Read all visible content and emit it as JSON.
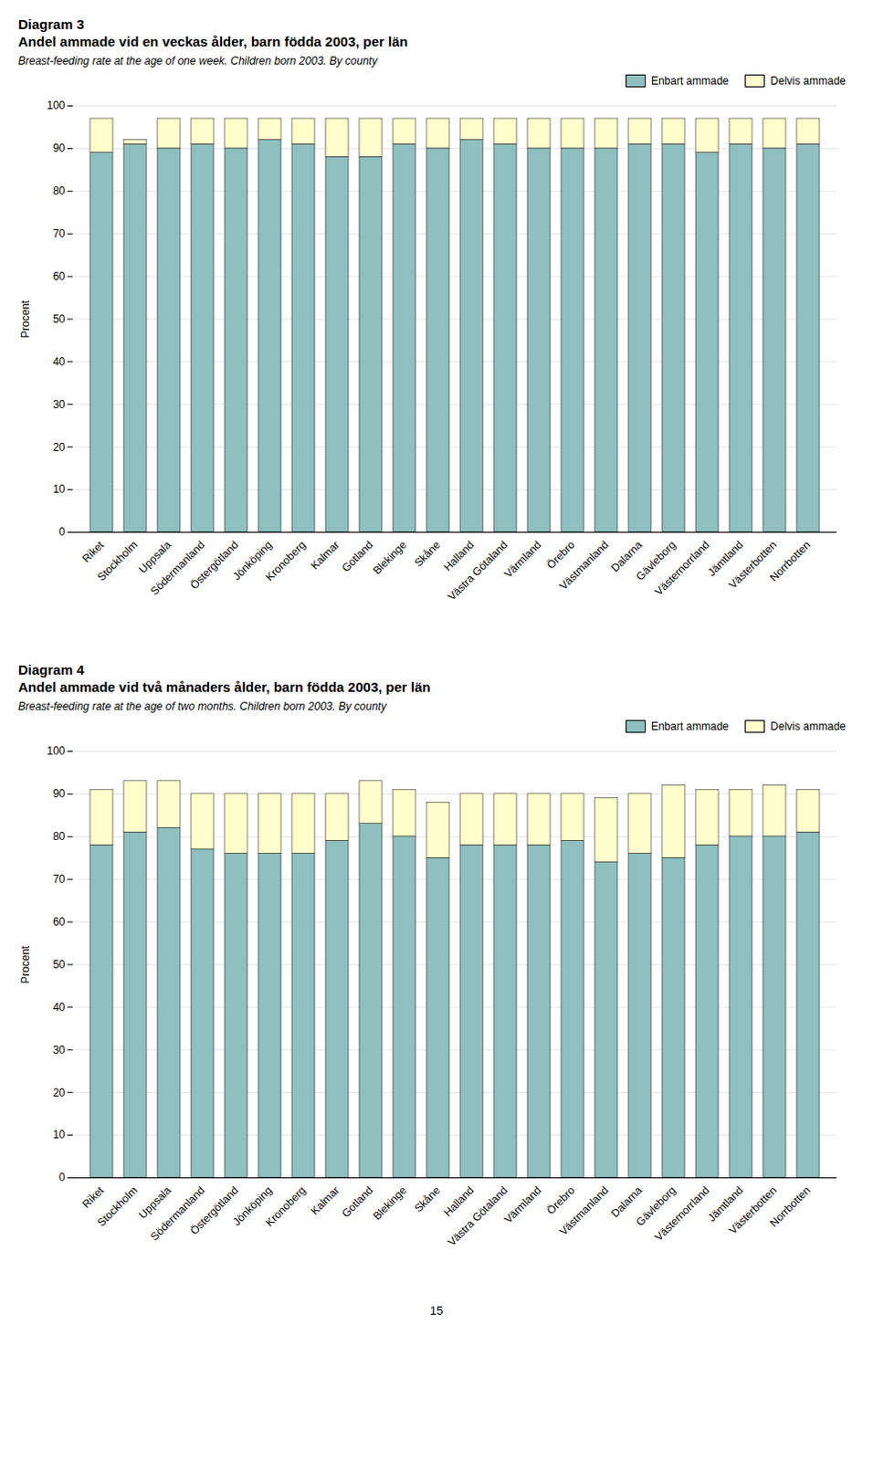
{
  "chart_data": [
    {
      "type": "bar",
      "title": [
        "Diagram 3",
        "Andel ammade vid en veckas ålder, barn födda 2003, per län"
      ],
      "subtitle": "Breast-feeding rate at the age of one week. Children born 2003. By county",
      "categories": [
        "Riket",
        "Stockholm",
        "Uppsala",
        "Södermanland",
        "Östergötland",
        "Jönköping",
        "Kronoberg",
        "Kalmar",
        "Gotland",
        "Blekinge",
        "Skåne",
        "Halland",
        "Västra Götaland",
        "Värmland",
        "Örebro",
        "Västmanland",
        "Dalarna",
        "Gävleborg",
        "Västernorrland",
        "Jämtland",
        "Västerbotten",
        "Norrbotten"
      ],
      "series": [
        {
          "name": "Enbart ammade",
          "color": "#8fbfbf",
          "values": [
            89,
            91,
            90,
            91,
            90,
            92,
            91,
            88,
            88,
            91,
            90,
            92,
            91,
            90,
            90,
            90,
            91,
            91,
            89,
            91,
            90,
            91
          ]
        },
        {
          "name": "Delvis ammade",
          "color": "#ffffcc",
          "values": [
            8,
            1,
            7,
            6,
            7,
            5,
            6,
            9,
            9,
            6,
            7,
            5,
            6,
            7,
            7,
            7,
            6,
            6,
            8,
            6,
            7,
            6
          ]
        }
      ],
      "stacked": true,
      "ylabel": "Procent",
      "ylim": [
        0,
        100
      ],
      "yticks": [
        0,
        10,
        20,
        30,
        40,
        50,
        60,
        70,
        80,
        90,
        100
      ],
      "grid": true,
      "legend": "upper right"
    },
    {
      "type": "bar",
      "title": [
        "Diagram 4",
        "Andel ammade vid två månaders ålder, barn födda 2003, per län"
      ],
      "subtitle": "Breast-feeding rate at the age of two months. Children born 2003. By county",
      "categories": [
        "Riket",
        "Stockholm",
        "Uppsala",
        "Södermanland",
        "Östergötland",
        "Jönköping",
        "Kronoberg",
        "Kalmar",
        "Gotland",
        "Blekinge",
        "Skåne",
        "Halland",
        "Västra Götaland",
        "Värmland",
        "Örebro",
        "Västmanland",
        "Dalarna",
        "Gävleborg",
        "Västernorrland",
        "Jämtland",
        "Västerbotten",
        "Norrbotten"
      ],
      "series": [
        {
          "name": "Enbart ammade",
          "color": "#8fbfbf",
          "values": [
            78,
            81,
            82,
            77,
            76,
            76,
            76,
            79,
            83,
            80,
            75,
            78,
            78,
            78,
            79,
            74,
            76,
            75,
            78,
            80,
            80,
            81
          ]
        },
        {
          "name": "Delvis ammade",
          "color": "#ffffcc",
          "values": [
            13,
            12,
            11,
            13,
            14,
            14,
            14,
            11,
            10,
            11,
            13,
            12,
            12,
            12,
            11,
            15,
            14,
            17,
            13,
            11,
            12,
            10
          ]
        }
      ],
      "stacked": true,
      "ylabel": "Procent",
      "ylim": [
        0,
        100
      ],
      "yticks": [
        0,
        10,
        20,
        30,
        40,
        50,
        60,
        70,
        80,
        90,
        100
      ],
      "grid": true,
      "legend": "upper right"
    }
  ],
  "page_number": "15"
}
